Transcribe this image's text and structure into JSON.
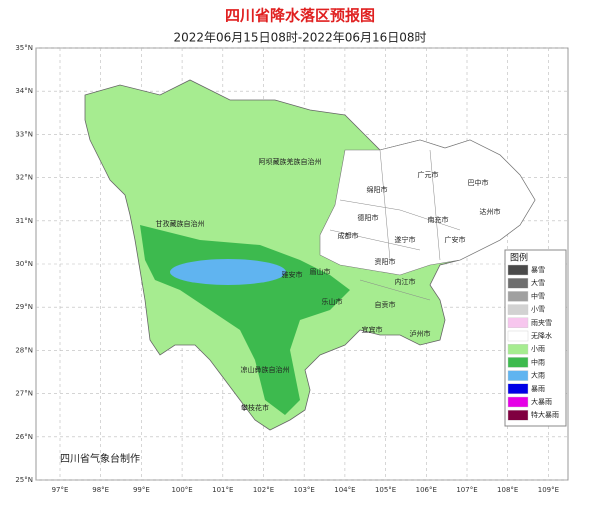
{
  "header": {
    "title": "四川省降水落区预报图",
    "subtitle": "2022年06月15日08时-2022年06月16日08时"
  },
  "latitude_labels": [
    "35°N",
    "34°N",
    "33°N",
    "32°N",
    "31°N",
    "30°N",
    "29°N",
    "28°N",
    "27°N",
    "26°N",
    "25°N"
  ],
  "longitude_labels": [
    "97°E",
    "98°E",
    "99°E",
    "100°E",
    "101°E",
    "102°E",
    "103°E",
    "104°E",
    "105°E",
    "106°E",
    "107°E",
    "108°E",
    "109°E"
  ],
  "legend": {
    "title": "图例",
    "items": [
      {
        "label": "暴雪",
        "color": "#4a4a4a"
      },
      {
        "label": "大雪",
        "color": "#6e6e6e"
      },
      {
        "label": "中雪",
        "color": "#a0a0a0"
      },
      {
        "label": "小雪",
        "color": "#d2d2d2"
      },
      {
        "label": "雨夹雪",
        "color": "#f7c6ee"
      },
      {
        "label": "无降水",
        "color": "#ffffff"
      },
      {
        "label": "小雨",
        "color": "#a6ec90"
      },
      {
        "label": "中雨",
        "color": "#3dba4e"
      },
      {
        "label": "大雨",
        "color": "#60b4f0"
      },
      {
        "label": "暴雨",
        "color": "#0000e6"
      },
      {
        "label": "大暴雨",
        "color": "#e600e6"
      },
      {
        "label": "特大暴雨",
        "color": "#800040"
      }
    ]
  },
  "places": [
    "阿坝藏族羌族自治州",
    "甘孜藏族自治州",
    "凉山彝族自治州",
    "攀枝花市",
    "广元市",
    "巴中市",
    "达州市",
    "绵阳市",
    "南充市",
    "德阳市",
    "成都市",
    "遂宁市",
    "广安市",
    "资阳市",
    "内江市",
    "眉山市",
    "雅安市",
    "乐山市",
    "自贡市",
    "宜宾市",
    "泸州市"
  ],
  "credit": "四川省气象台制作"
}
